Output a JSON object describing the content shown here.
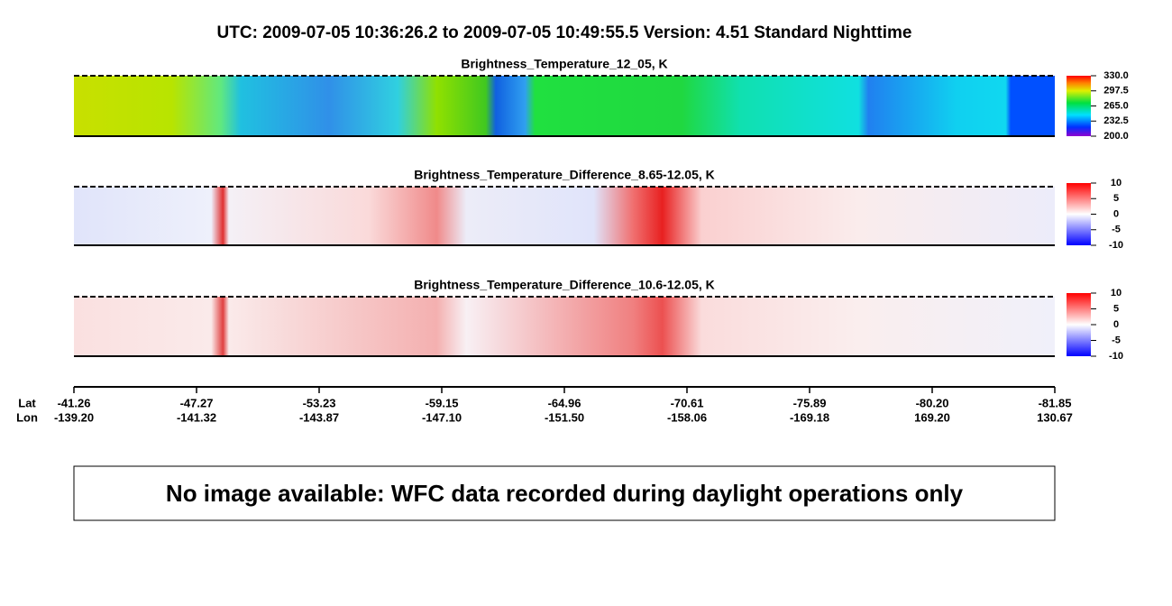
{
  "header": {
    "title": "UTC:  2009-07-05   10:36:26.2  to  2009-07-05   10:49:55.5   Version: 4.51  Standard Nighttime"
  },
  "panels": [
    {
      "title": "Brightness_Temperature_12_05, K",
      "colorbar_ticks": [
        "330.0",
        "297.5",
        "265.0",
        "232.5",
        "200.0"
      ]
    },
    {
      "title": "Brightness_Temperature_Difference_8.65-12.05, K",
      "colorbar_ticks": [
        "10",
        "5",
        "0",
        "-5",
        "-10"
      ]
    },
    {
      "title": "Brightness_Temperature_Difference_10.6-12.05, K",
      "colorbar_ticks": [
        "10",
        "5",
        "0",
        "-5",
        "-10"
      ]
    }
  ],
  "axis": {
    "lat_label": "Lat",
    "lon_label": "Lon",
    "lat": [
      "-41.26",
      "-47.27",
      "-53.23",
      "-59.15",
      "-64.96",
      "-70.61",
      "-75.89",
      "-80.20",
      "-81.85"
    ],
    "lon": [
      "-139.20",
      "-141.32",
      "-143.87",
      "-147.10",
      "-151.50",
      "-158.06",
      "-169.18",
      "169.20",
      "130.67"
    ]
  },
  "message": "No image available: WFC data recorded during daylight operations only"
}
